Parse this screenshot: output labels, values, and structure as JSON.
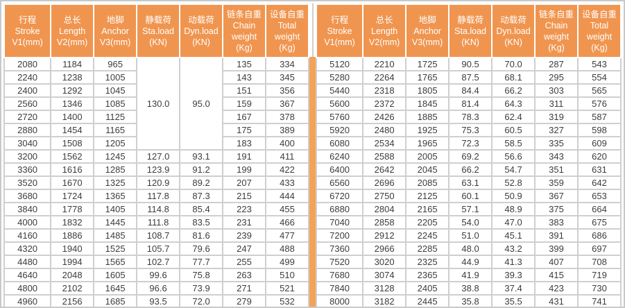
{
  "document": {
    "kind": "equipment-specification-table",
    "language": "zh-en"
  },
  "theme": {
    "header_bg": "#F0954F",
    "header_text": "#FFFFFF",
    "divider_color": "#F4A257",
    "grid_color": "#CFCFCF",
    "grid_outer_color": "#C9C9C9",
    "cell_text": "#3C3C3C",
    "row_bg": "#FFFFFF"
  },
  "columns": [
    {
      "key": "stroke",
      "lines": [
        "行程",
        "Stroke",
        "V1(mm)"
      ]
    },
    {
      "key": "length",
      "lines": [
        "总长",
        "Length",
        "V2(mm)"
      ]
    },
    {
      "key": "anchor",
      "lines": [
        "地脚",
        "Anchor",
        "V3(mm)"
      ]
    },
    {
      "key": "sta_load",
      "lines": [
        "静载荷",
        "Sta.load",
        "(KN)"
      ]
    },
    {
      "key": "dyn_load",
      "lines": [
        "动载荷",
        "Dyn.load",
        "(KN)"
      ]
    },
    {
      "key": "chain_weight",
      "lines": [
        "链条自重",
        "Chain",
        "weight",
        "(Kg)"
      ]
    },
    {
      "key": "total_weight",
      "lines": [
        "设备自重",
        "Total",
        "weight",
        "(Kg)"
      ]
    }
  ],
  "tables": [
    {
      "id": "left",
      "rows": [
        [
          "2080",
          "1184",
          "965",
          {
            "text": "130.0",
            "rowspan": 7
          },
          {
            "text": "95.0",
            "rowspan": 7
          },
          "135",
          "334"
        ],
        [
          "2240",
          "1238",
          "1005",
          null,
          null,
          "143",
          "345"
        ],
        [
          "2400",
          "1292",
          "1045",
          null,
          null,
          "151",
          "356"
        ],
        [
          "2560",
          "1346",
          "1085",
          null,
          null,
          "159",
          "367"
        ],
        [
          "2720",
          "1400",
          "1125",
          null,
          null,
          "167",
          "378"
        ],
        [
          "2880",
          "1454",
          "1165",
          null,
          null,
          "175",
          "389"
        ],
        [
          "3040",
          "1508",
          "1205",
          null,
          null,
          "183",
          "400"
        ],
        [
          "3200",
          "1562",
          "1245",
          "127.0",
          "93.1",
          "191",
          "411"
        ],
        [
          "3360",
          "1616",
          "1285",
          "123.9",
          "91.2",
          "199",
          "422"
        ],
        [
          "3520",
          "1670",
          "1325",
          "120.9",
          "89.2",
          "207",
          "433"
        ],
        [
          "3680",
          "1724",
          "1365",
          "117.8",
          "87.3",
          "215",
          "444"
        ],
        [
          "3840",
          "1778",
          "1405",
          "114.8",
          "85.4",
          "223",
          "455"
        ],
        [
          "4000",
          "1832",
          "1445",
          "111.8",
          "83.5",
          "231",
          "466"
        ],
        [
          "4160",
          "1886",
          "1485",
          "108.7",
          "81.6",
          "239",
          "477"
        ],
        [
          "4320",
          "1940",
          "1525",
          "105.7",
          "79.6",
          "247",
          "488"
        ],
        [
          "4480",
          "1994",
          "1565",
          "102.7",
          "77.7",
          "255",
          "499"
        ],
        [
          "4640",
          "2048",
          "1605",
          "99.6",
          "75.8",
          "263",
          "510"
        ],
        [
          "4800",
          "2102",
          "1645",
          "96.6",
          "73.9",
          "271",
          "521"
        ],
        [
          "4960",
          "2156",
          "1685",
          "93.5",
          "72.0",
          "279",
          "532"
        ]
      ]
    },
    {
      "id": "right",
      "rows": [
        [
          "5120",
          "2210",
          "1725",
          "90.5",
          "70.0",
          "287",
          "543"
        ],
        [
          "5280",
          "2264",
          "1765",
          "87.5",
          "68.1",
          "295",
          "554"
        ],
        [
          "5440",
          "2318",
          "1805",
          "84.4",
          "66.2",
          "303",
          "565"
        ],
        [
          "5600",
          "2372",
          "1845",
          "81.4",
          "64.3",
          "311",
          "576"
        ],
        [
          "5760",
          "2426",
          "1885",
          "78.3",
          "62.4",
          "319",
          "587"
        ],
        [
          "5920",
          "2480",
          "1925",
          "75.3",
          "60.5",
          "327",
          "598"
        ],
        [
          "6080",
          "2534",
          "1965",
          "72.3",
          "58.5",
          "335",
          "609"
        ],
        [
          "6240",
          "2588",
          "2005",
          "69.2",
          "56.6",
          "343",
          "620"
        ],
        [
          "6400",
          "2642",
          "2045",
          "66.2",
          "54.7",
          "351",
          "631"
        ],
        [
          "6560",
          "2696",
          "2085",
          "63.1",
          "52.8",
          "359",
          "642"
        ],
        [
          "6720",
          "2750",
          "2125",
          "60.1",
          "50.9",
          "367",
          "653"
        ],
        [
          "6880",
          "2804",
          "2165",
          "57.1",
          "48.9",
          "375",
          "664"
        ],
        [
          "7040",
          "2858",
          "2205",
          "54.0",
          "47.0",
          "383",
          "675"
        ],
        [
          "7200",
          "2912",
          "2245",
          "51.0",
          "45.1",
          "391",
          "686"
        ],
        [
          "7360",
          "2966",
          "2285",
          "48.0",
          "43.2",
          "399",
          "697"
        ],
        [
          "7520",
          "3020",
          "2325",
          "44.9",
          "41.3",
          "407",
          "708"
        ],
        [
          "7680",
          "3074",
          "2365",
          "41.9",
          "39.3",
          "415",
          "719"
        ],
        [
          "7840",
          "3128",
          "2405",
          "38.8",
          "37.4",
          "423",
          "730"
        ],
        [
          "8000",
          "3182",
          "2445",
          "35.8",
          "35.5",
          "431",
          "741"
        ]
      ]
    }
  ]
}
